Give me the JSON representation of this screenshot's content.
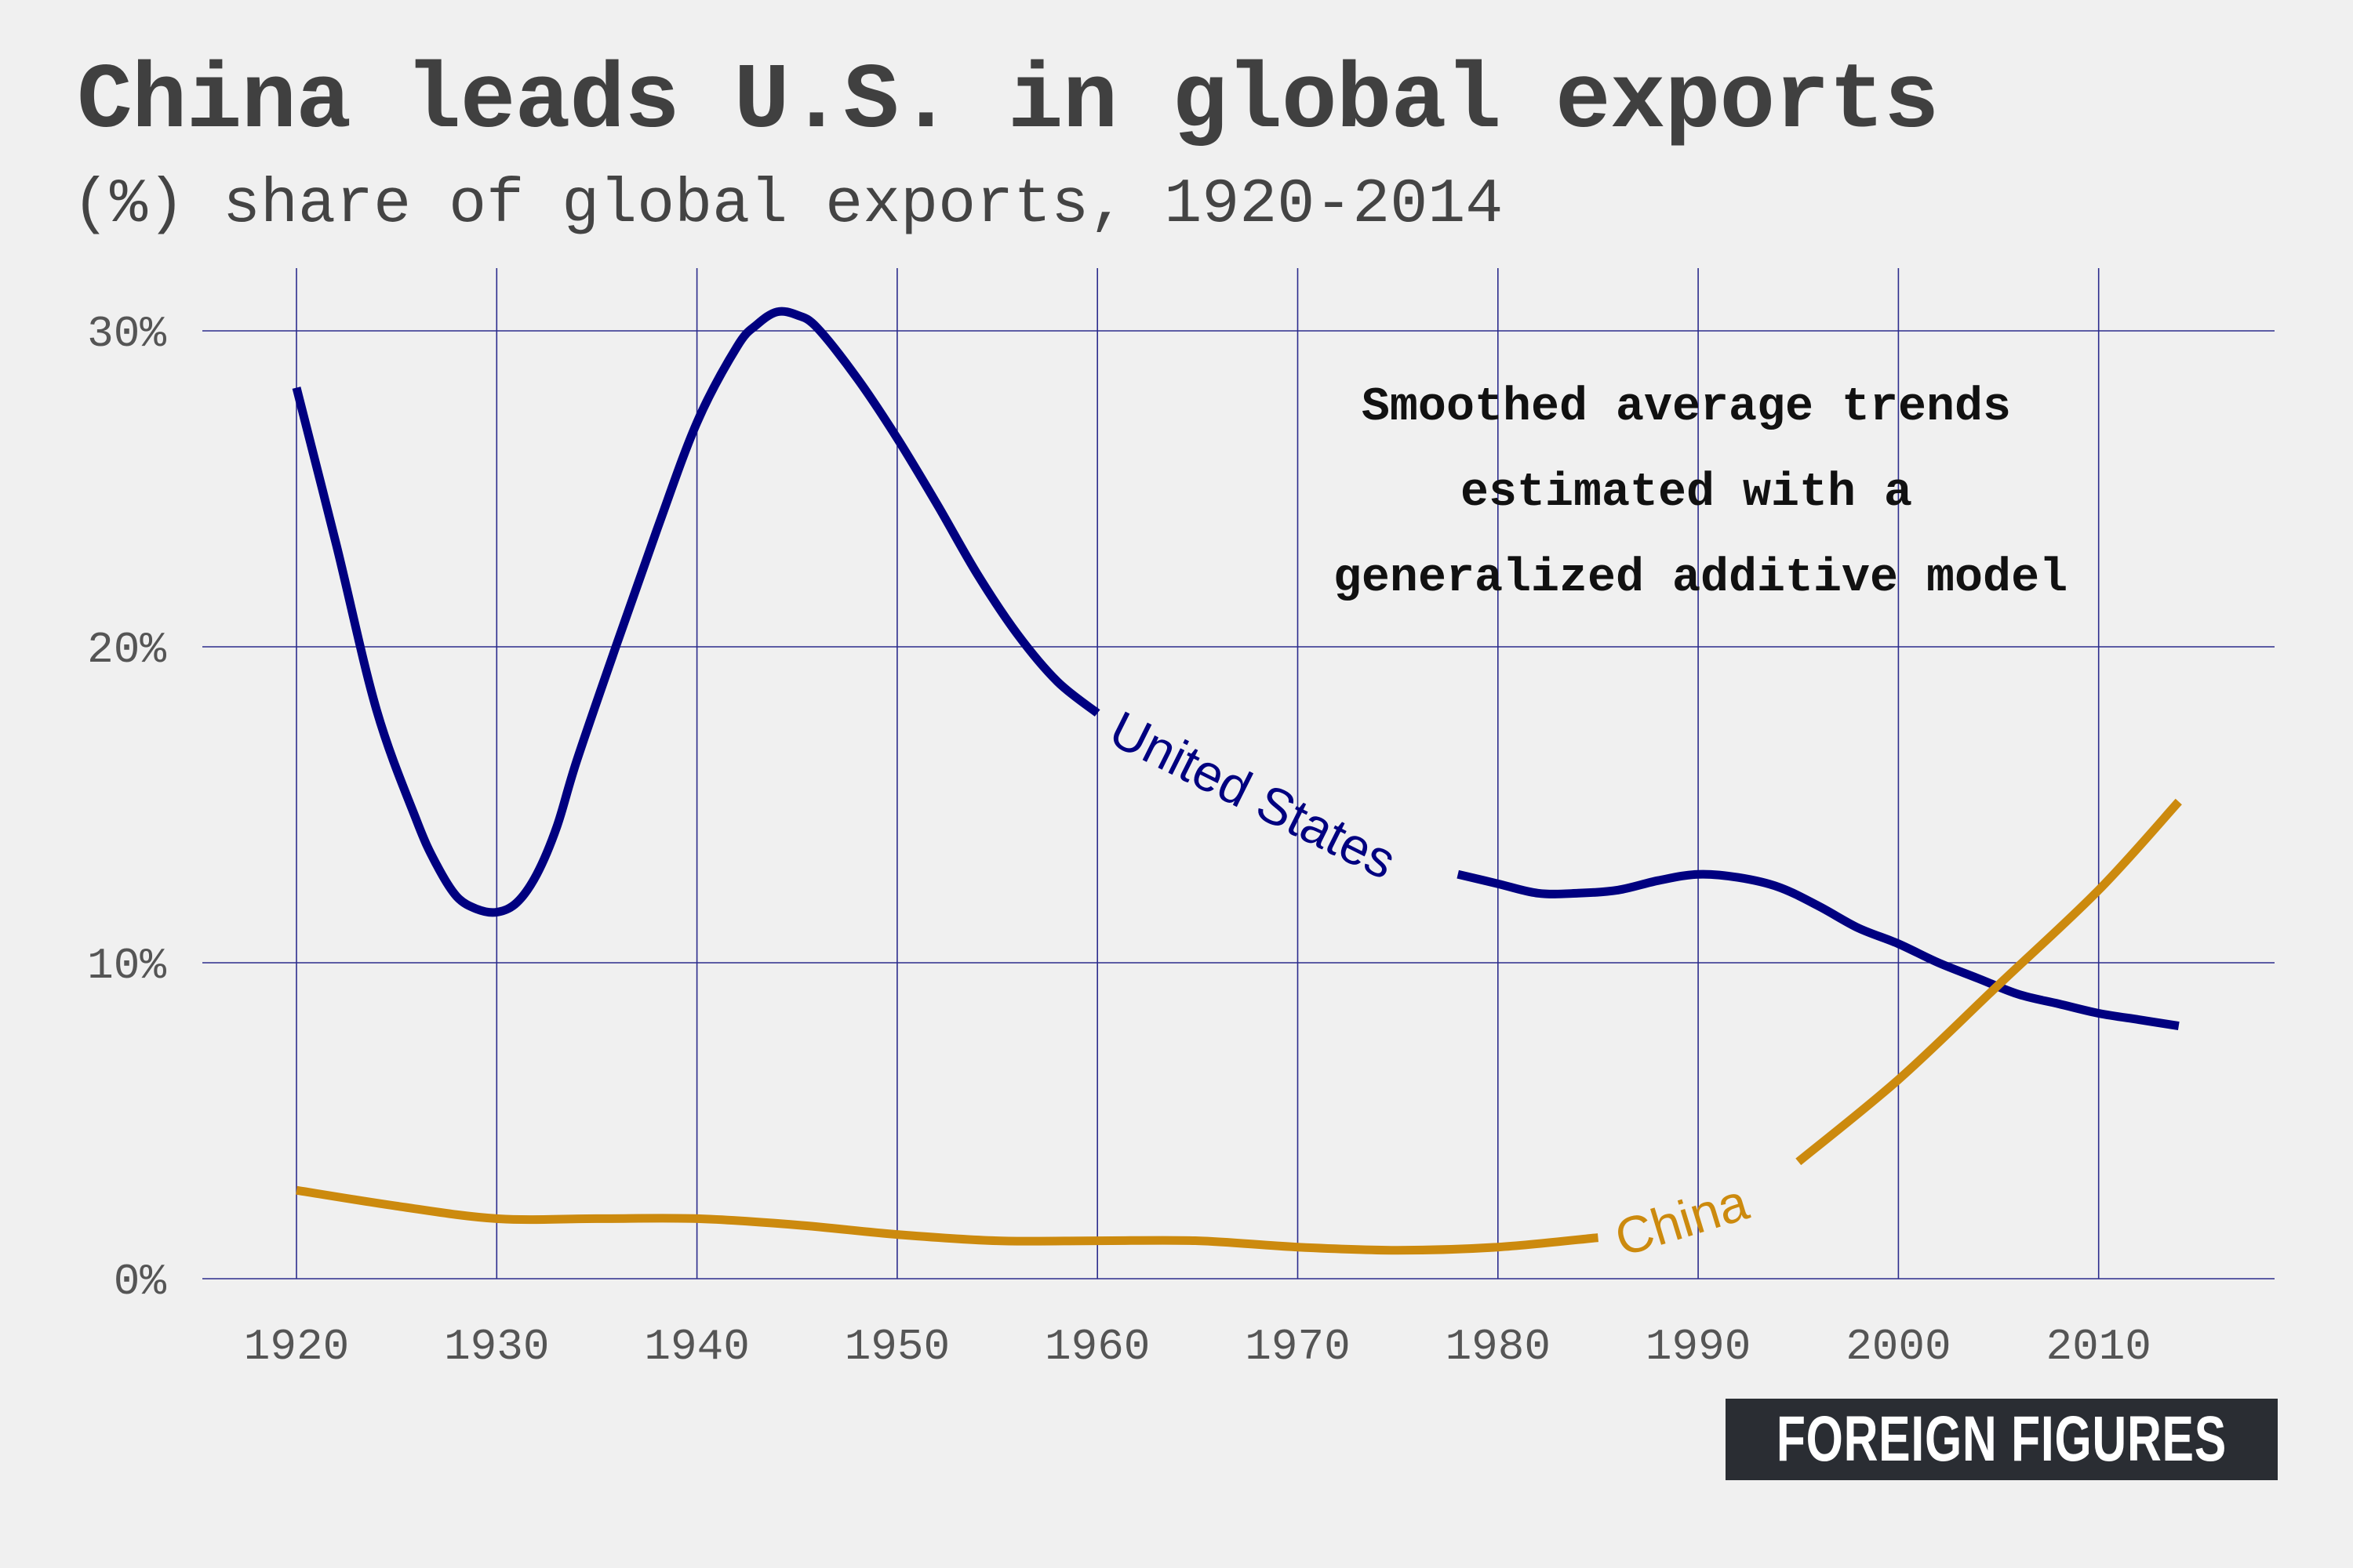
{
  "header": {
    "title": "China leads U.S. in global exports",
    "subtitle": "(%) share of global exports, 1920-2014"
  },
  "annotation": {
    "lines": [
      "Smoothed average trends",
      "estimated with a",
      "generalized additive model"
    ]
  },
  "branding": {
    "text": "FOREIGN FIGURES"
  },
  "colors": {
    "background": "#f0f0f0",
    "grid": "#2c2c8c",
    "united_states": "#000080",
    "china": "#cc8a0e"
  },
  "chart_data": {
    "type": "line",
    "title": "China leads U.S. in global exports",
    "subtitle": "(%) share of global exports, 1920-2014",
    "xlabel": "",
    "ylabel": "",
    "xlim": [
      1915,
      2019
    ],
    "ylim": [
      0,
      32
    ],
    "x_ticks": [
      1920,
      1930,
      1940,
      1950,
      1960,
      1970,
      1980,
      1990,
      2000,
      2010
    ],
    "y_ticks": [
      0,
      10,
      20,
      30
    ],
    "y_tick_labels": [
      "0%",
      "10%",
      "20%",
      "30%"
    ],
    "grid": true,
    "legend": "none (series labelled directly on lines)",
    "series": [
      {
        "name": "United States",
        "color": "#000080",
        "x": [
          1920,
          1922,
          1924,
          1926,
          1927,
          1928,
          1929,
          1930,
          1931,
          1932,
          1933,
          1934,
          1936,
          1938,
          1940,
          1942,
          1943,
          1944,
          1945,
          1946,
          1948,
          1950,
          1952,
          1954,
          1956,
          1958,
          1960,
          1962,
          1964,
          1966,
          1968,
          1970,
          1972,
          1974,
          1976,
          1978,
          1980,
          1982,
          1984,
          1986,
          1988,
          1990,
          1992,
          1994,
          1996,
          1998,
          2000,
          2002,
          2004,
          2006,
          2008,
          2010,
          2012,
          2014
        ],
        "y": [
          28.2,
          23.2,
          18.0,
          14.5,
          13.1,
          12.1,
          11.7,
          11.6,
          11.9,
          12.8,
          14.3,
          16.4,
          20.1,
          23.7,
          27.1,
          29.5,
          30.2,
          30.6,
          30.5,
          30.1,
          28.5,
          26.6,
          24.5,
          22.3,
          20.4,
          18.9,
          17.9,
          16.9,
          16.0,
          15.2,
          14.5,
          13.9,
          13.5,
          13.2,
          13.0,
          12.8,
          12.5,
          12.2,
          12.2,
          12.3,
          12.6,
          12.8,
          12.7,
          12.4,
          11.8,
          11.1,
          10.6,
          10.0,
          9.5,
          9.0,
          8.7,
          8.4,
          8.2,
          8.0
        ]
      },
      {
        "name": "China",
        "color": "#cc8a0e",
        "x": [
          1920,
          1925,
          1930,
          1935,
          1940,
          1945,
          1950,
          1955,
          1960,
          1965,
          1970,
          1975,
          1980,
          1985,
          1990,
          1995,
          2000,
          2005,
          2010,
          2014
        ],
        "y": [
          2.8,
          2.3,
          1.9,
          1.9,
          1.9,
          1.7,
          1.4,
          1.2,
          1.2,
          1.2,
          1.0,
          0.9,
          1.0,
          1.3,
          2.1,
          3.7,
          6.3,
          9.3,
          12.3,
          15.1
        ]
      }
    ]
  }
}
